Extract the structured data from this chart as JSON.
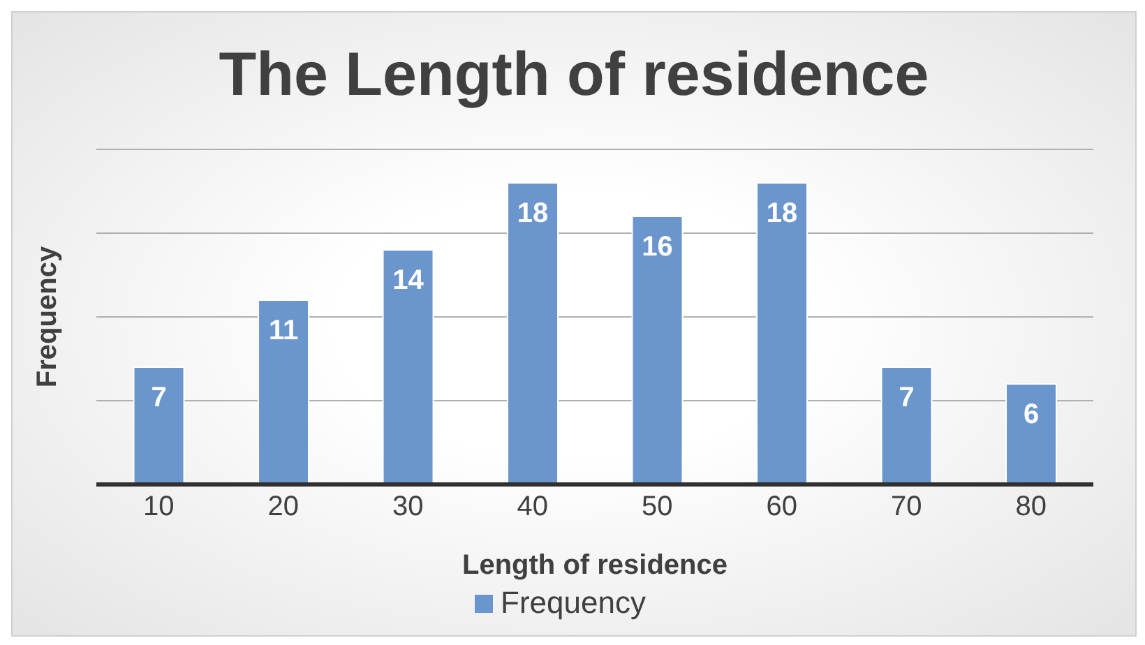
{
  "chart_data": {
    "type": "bar",
    "title": "The Length of residence",
    "xlabel": "Length of residence",
    "ylabel": "Frequency",
    "categories": [
      "10",
      "20",
      "30",
      "40",
      "50",
      "60",
      "70",
      "80"
    ],
    "series": [
      {
        "name": "Frequency",
        "color": "#6a96cd",
        "values": [
          7,
          11,
          14,
          18,
          16,
          18,
          7,
          6
        ]
      }
    ],
    "ylim": [
      0,
      20
    ],
    "tick_labels": "x",
    "grid": "y",
    "legend": "bottom",
    "data_labels": true
  }
}
